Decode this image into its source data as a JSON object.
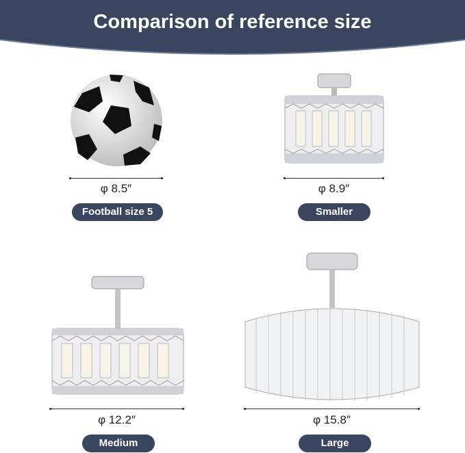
{
  "header": {
    "title": "Comparison of reference size",
    "color": "#3a4560"
  },
  "items": [
    {
      "dimension": "φ 8.5″",
      "label": "Football size 5",
      "image": "soccer-ball"
    },
    {
      "dimension": "φ 8.9″",
      "label": "Smaller",
      "image": "crystal-ceiling-light-small"
    },
    {
      "dimension": "φ 12.2″",
      "label": "Medium",
      "image": "crystal-ceiling-light-medium"
    },
    {
      "dimension": "φ 15.8″",
      "label": "Large",
      "image": "crystal-ceiling-light-large"
    }
  ]
}
